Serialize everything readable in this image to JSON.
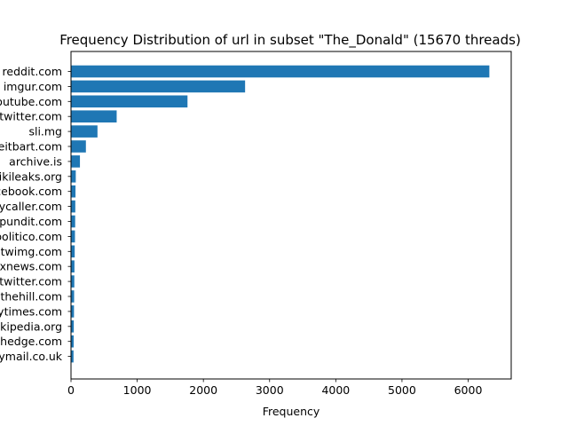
{
  "chart_data": {
    "type": "bar",
    "orientation": "horizontal",
    "title": "Frequency Distribution of url in subset \"The_Donald\" (15670 threads)",
    "xlabel": "Frequency",
    "ylabel": "",
    "xlim": [
      0,
      6650
    ],
    "x_ticks": [
      0,
      1000,
      2000,
      3000,
      4000,
      5000,
      6000
    ],
    "grid": false,
    "bar_color": "#1f77b4",
    "categories": [
      "reddit.com",
      "imgur.com",
      "youtube.com",
      "twitter.com",
      "sli.mg",
      "breitbart.com",
      "archive.is",
      "wikileaks.org",
      "facebook.com",
      "dailycaller.com",
      "infowars.com / pundit.com",
      "politico.com",
      "twimg.com",
      "foxnews.com",
      "mobile.twitter.com",
      "thehill.com",
      "nytimes.com",
      "wikipedia.org",
      "zerohedge.com",
      "dailymail.co.uk"
    ],
    "category_labels": [
      "reddit.com",
      "imgur.com",
      "youtube.com",
      "twitter.com",
      "sli.mg",
      "breitbart.com",
      "archive.is",
      "wikileaks.org",
      "facebook.com",
      "dailycaller.com",
      "pundit.com",
      "politico.com",
      "twimg.com",
      "foxnews.com",
      "twitter.com",
      "thehill.com",
      "nytimes.com",
      "wikipedia.org",
      "zerohedge.com",
      "dailymail.co.uk"
    ],
    "values": [
      6320,
      2630,
      1760,
      690,
      400,
      225,
      135,
      72,
      68,
      65,
      63,
      60,
      56,
      52,
      50,
      47,
      45,
      42,
      40,
      38
    ]
  }
}
